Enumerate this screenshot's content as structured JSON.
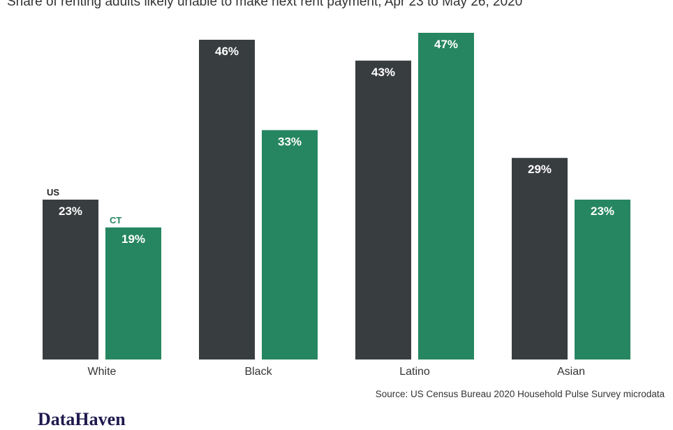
{
  "chart_data": {
    "type": "bar",
    "title": "Share of renting adults likely unable to make next rent payment, Apr 23 to May 26, 2020",
    "categories": [
      "White",
      "Black",
      "Latino",
      "Asian"
    ],
    "series": [
      {
        "name": "US",
        "values": [
          23,
          46,
          43,
          29
        ],
        "color": "#383d3f"
      },
      {
        "name": "CT",
        "values": [
          19,
          33,
          47,
          23
        ],
        "color": "#268661"
      }
    ],
    "value_suffix": "%",
    "ylim": [
      0,
      47
    ],
    "grid": false,
    "legend": "inline-labels-on-first-group",
    "source": "Source: US Census Bureau 2020 Household Pulse Survey microdata"
  },
  "brand": {
    "name": "DataHaven",
    "color": "#1f1a4e"
  }
}
